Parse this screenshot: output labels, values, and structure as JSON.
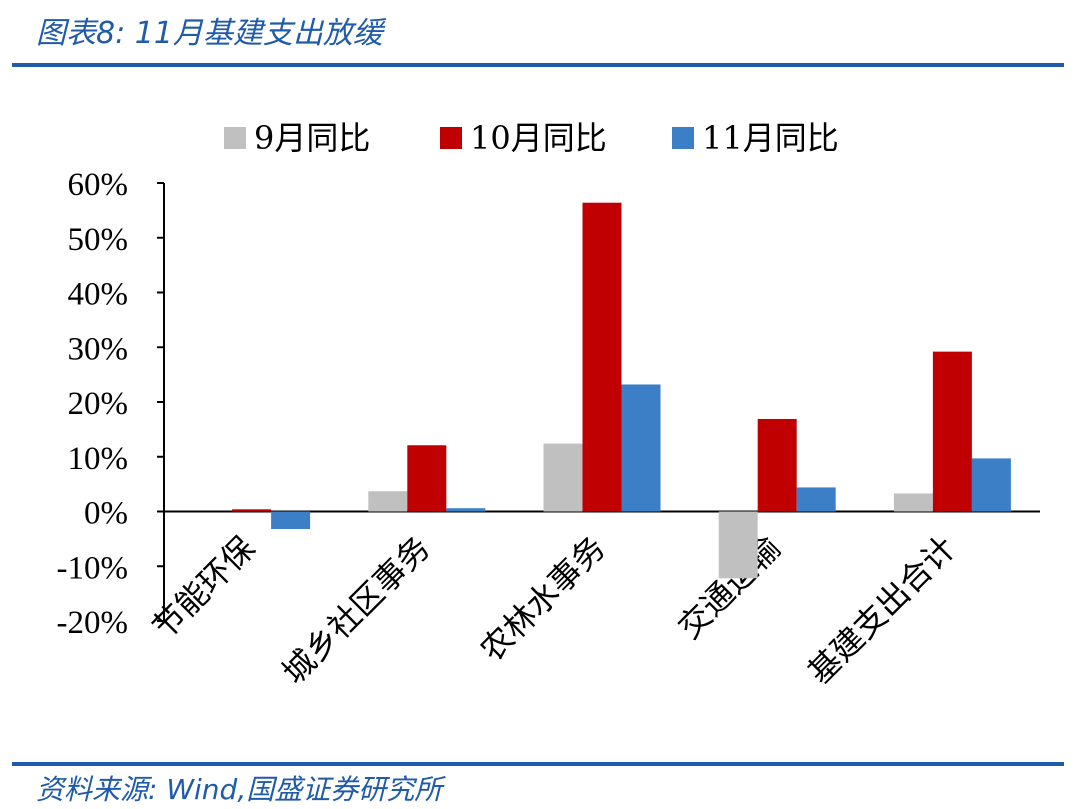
{
  "header": {
    "title": "图表8:  11月基建支出放缓"
  },
  "footer": {
    "source": "资料来源:  Wind,国盛证券研究所"
  },
  "colors": {
    "accent": "#1f5ba8"
  },
  "chart_data": {
    "type": "bar",
    "title": "",
    "xlabel": "",
    "ylabel": "",
    "categories": [
      "节能环保",
      "城乡社区事务",
      "农林水事务",
      "交通运输",
      "基建支出合计"
    ],
    "series": [
      {
        "name": "9月同比",
        "color": "#c0c0c0",
        "values": [
          0.0,
          3.7,
          12.4,
          -12.2,
          3.3
        ]
      },
      {
        "name": "10月同比",
        "color": "#c00000",
        "values": [
          0.4,
          12.1,
          56.4,
          16.9,
          29.2
        ]
      },
      {
        "name": "11月同比",
        "color": "#3c7fc6",
        "values": [
          -3.2,
          0.6,
          23.2,
          4.4,
          9.7
        ]
      }
    ],
    "ylim": [
      -20,
      60
    ],
    "yticks": [
      -20,
      -10,
      0,
      10,
      20,
      30,
      40,
      50,
      60
    ],
    "ytick_labels": [
      "-20%",
      "-10%",
      "0%",
      "10%",
      "20%",
      "30%",
      "40%",
      "50%",
      "60%"
    ],
    "legend": "top",
    "grid": false
  }
}
